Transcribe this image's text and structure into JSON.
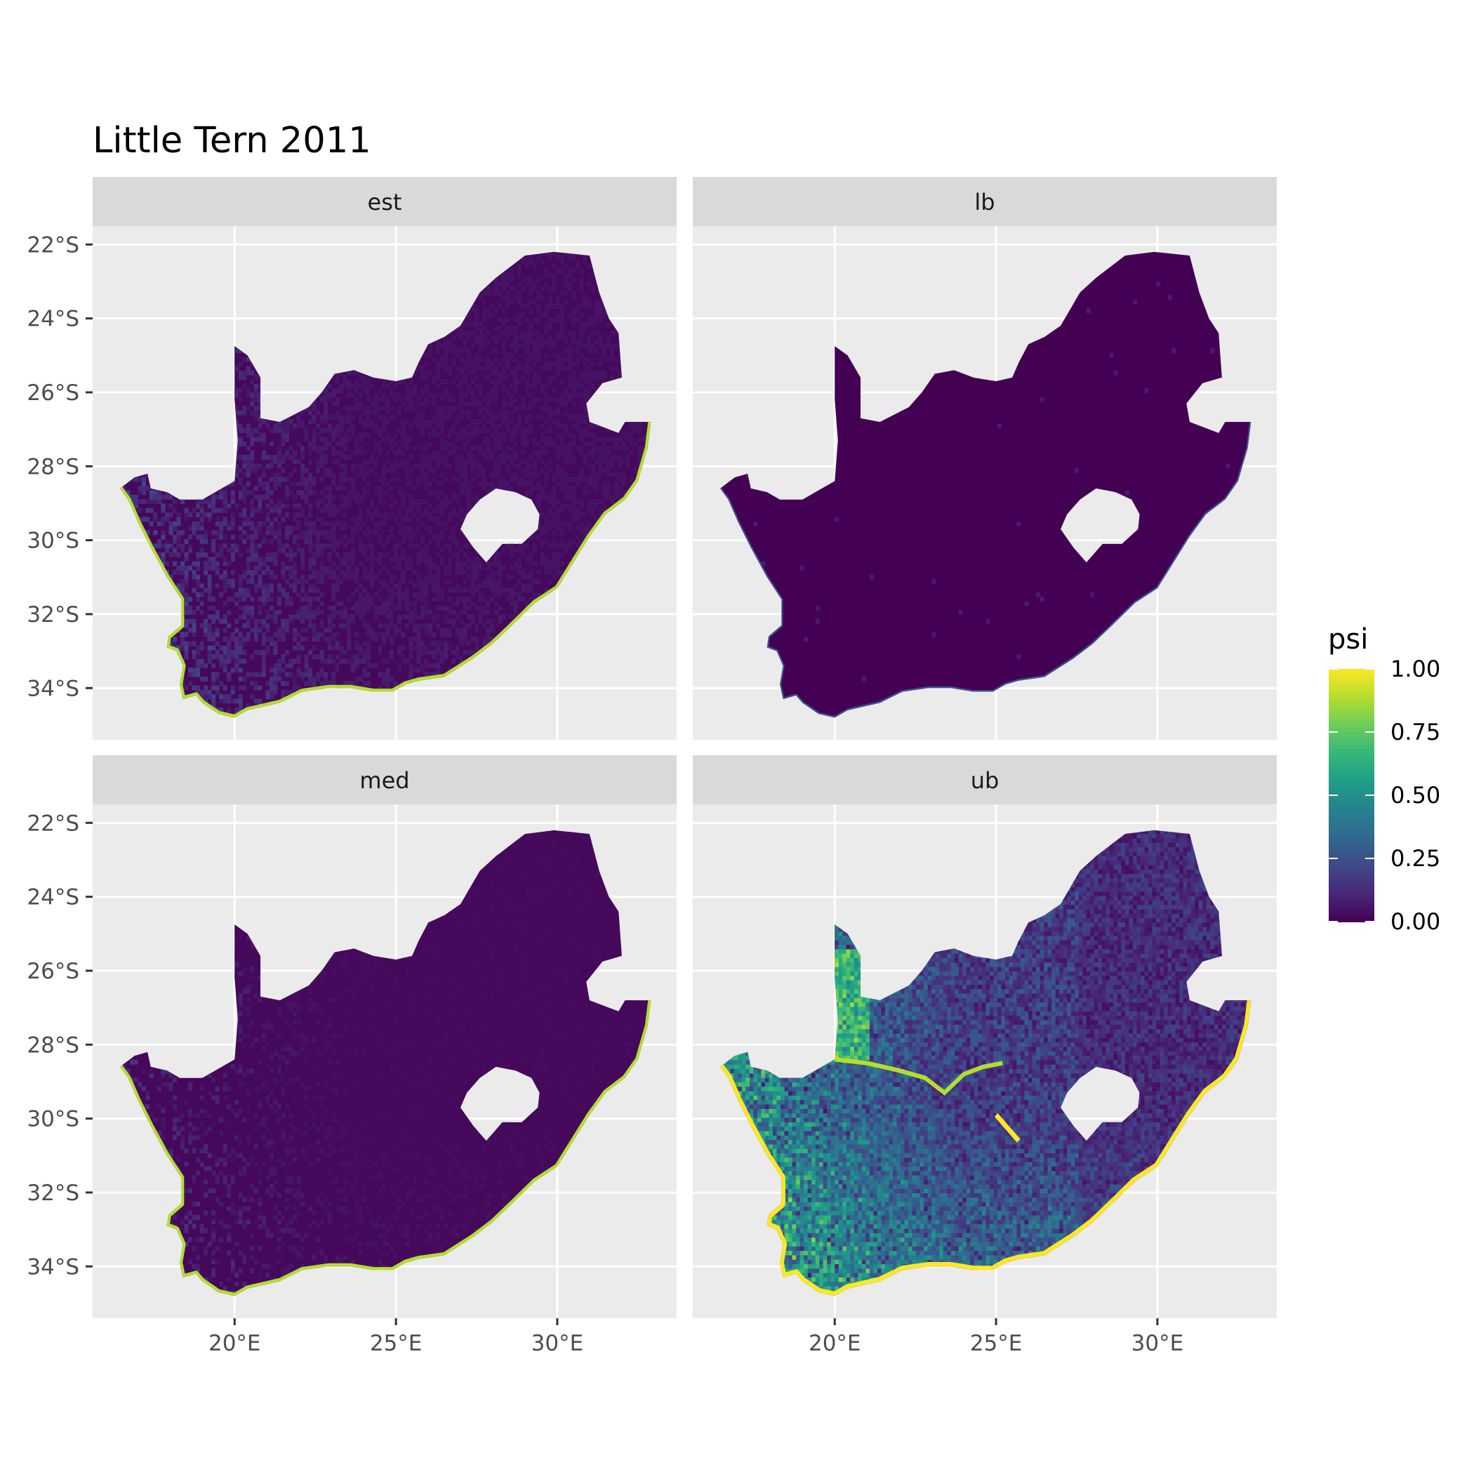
{
  "title": "Little Tern 2011",
  "facets": [
    {
      "label": "est",
      "pattern": "est"
    },
    {
      "label": "lb",
      "pattern": "lb"
    },
    {
      "label": "med",
      "pattern": "med"
    },
    {
      "label": "ub",
      "pattern": "ub"
    }
  ],
  "axes": {
    "x_ticks": [
      "20°E",
      "25°E",
      "30°E"
    ],
    "x_tick_values": [
      20,
      25,
      30
    ],
    "y_ticks": [
      "22°S",
      "24°S",
      "26°S",
      "28°S",
      "30°S",
      "32°S",
      "34°S"
    ],
    "y_tick_values": [
      -22,
      -24,
      -26,
      -28,
      -30,
      -32,
      -34
    ],
    "xlim": [
      15.6,
      33.7
    ],
    "ylim": [
      -35.4,
      -21.5
    ]
  },
  "legend": {
    "title": "psi",
    "labels": [
      "1.00",
      "0.75",
      "0.50",
      "0.25",
      "0.00"
    ],
    "values": [
      1.0,
      0.75,
      0.5,
      0.25,
      0.0
    ],
    "colors": [
      "#fde725",
      "#5ec962",
      "#21918c",
      "#3b528b",
      "#440154"
    ]
  },
  "colors": {
    "panel_bg": "#ebebeb",
    "grid": "#ffffff",
    "strip_bg": "#d9d9d9",
    "low_value": "#440154"
  },
  "chart_data": {
    "type": "heatmap",
    "title": "Little Tern 2011",
    "facets": [
      "est",
      "lb",
      "med",
      "ub"
    ],
    "x_ticks": [
      "20°E",
      "25°E",
      "30°E"
    ],
    "y_ticks": [
      "22°S",
      "24°S",
      "26°S",
      "28°S",
      "30°S",
      "32°S",
      "34°S"
    ],
    "xlim": [
      15.6,
      33.7
    ],
    "ylim": [
      -35.4,
      -21.5
    ],
    "fill_variable": "psi",
    "fill_range": [
      0,
      1
    ],
    "colormap": "viridis",
    "grid": true,
    "legend_position": "right"
  }
}
